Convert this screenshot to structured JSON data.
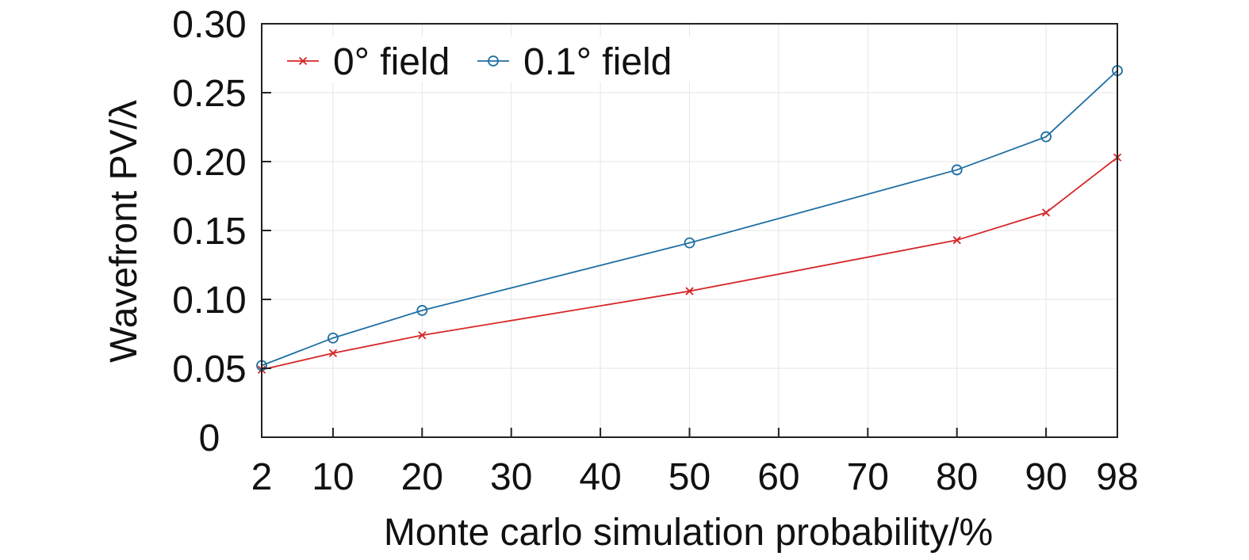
{
  "chart_data": {
    "type": "line",
    "title": "",
    "xlabel": "Monte carlo simulation probability/%",
    "ylabel": "Wavefront PV/λ",
    "x": [
      2,
      10,
      20,
      50,
      80,
      90,
      98
    ],
    "xticks": [
      2,
      10,
      20,
      30,
      40,
      50,
      60,
      70,
      80,
      90,
      98
    ],
    "xtick_labels": [
      "2",
      "10",
      "20",
      "30",
      "40",
      "50",
      "60",
      "70",
      "80",
      "90",
      "98"
    ],
    "yticks": [
      0,
      0.05,
      0.1,
      0.15,
      0.2,
      0.25,
      0.3
    ],
    "ytick_labels": [
      "0",
      "0.05",
      "0.10",
      "0.15",
      "0.20",
      "0.25",
      "0.30"
    ],
    "xlim": [
      2,
      98
    ],
    "ylim": [
      0,
      0.3
    ],
    "grid": true,
    "legend_position": "top-left",
    "series": [
      {
        "name": "0° field",
        "color": "#d62728",
        "marker": "x",
        "values": [
          0.049,
          0.061,
          0.074,
          0.106,
          0.143,
          0.163,
          0.203
        ]
      },
      {
        "name": "0.1° field",
        "color": "#1f6fa3",
        "marker": "circle",
        "values": [
          0.052,
          0.072,
          0.092,
          0.141,
          0.194,
          0.218,
          0.266
        ]
      }
    ]
  }
}
